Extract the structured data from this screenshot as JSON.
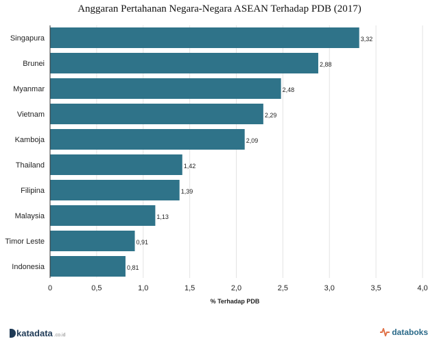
{
  "chart_data": {
    "type": "bar",
    "orientation": "horizontal",
    "title": "Anggaran Pertahanan Negara-Negara ASEAN Terhadap PDB (2017)",
    "xlabel": "% Terhadap PDB",
    "ylabel": "",
    "categories": [
      "Singapura",
      "Brunei",
      "Myanmar",
      "Vietnam",
      "Kamboja",
      "Thailand",
      "Filipina",
      "Malaysia",
      "Timor Leste",
      "Indonesia"
    ],
    "values": [
      3.32,
      2.88,
      2.48,
      2.29,
      2.09,
      1.42,
      1.39,
      1.13,
      0.91,
      0.81
    ],
    "value_labels": [
      "3,32",
      "2,88",
      "2,48",
      "2,29",
      "2,09",
      "1,42",
      "1,39",
      "1,13",
      "0,91",
      "0,81"
    ],
    "xlim": [
      0,
      4
    ],
    "ticks": [
      0,
      0.5,
      1,
      1.5,
      2,
      2.5,
      3,
      3.5,
      4
    ],
    "tick_labels": [
      "0",
      "0,5",
      "1,0",
      "1,5",
      "2,0",
      "2,5",
      "3,0",
      "3,5",
      "4,0"
    ],
    "grid": true,
    "bar_color": "#2f7389"
  },
  "footer": {
    "left_brand": "katadata",
    "left_suffix": ".co.id",
    "right_brand": "databoks"
  },
  "colors": {
    "left_brand": "#1f3a56",
    "right_brand": "#2b6a89",
    "right_icon": "#e0734a"
  }
}
